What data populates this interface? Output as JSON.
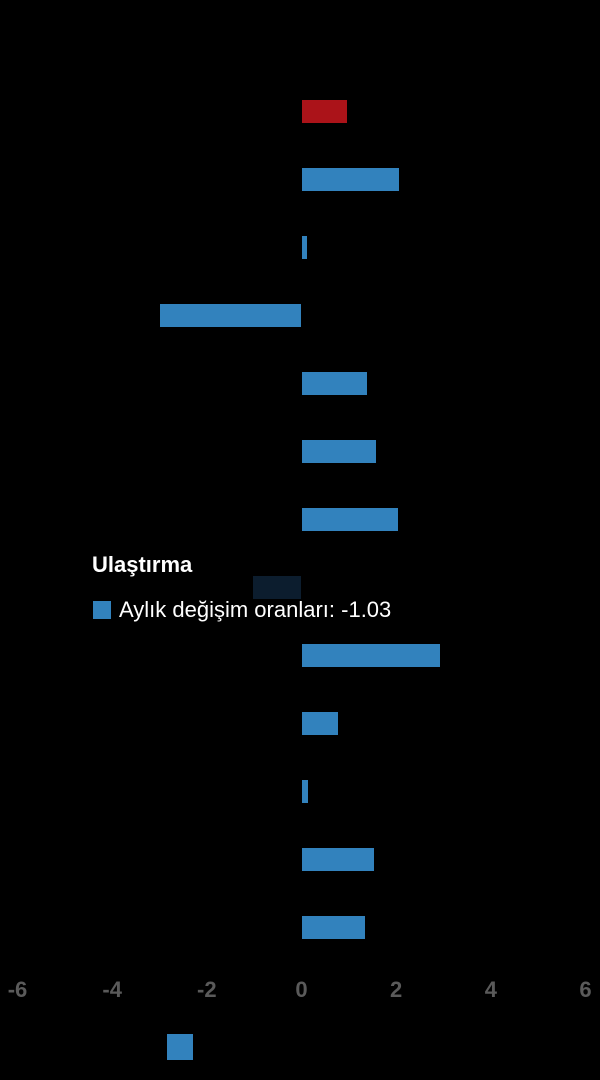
{
  "colors": {
    "background": "#000000",
    "bar_blue": "#3282bd",
    "bar_red": "#ab1319",
    "bar_highlight": "#0c1d2e",
    "axis_label": "#5a5a5a",
    "tooltip_text": "#ffffff"
  },
  "tooltip": {
    "title": "Ulaştırma",
    "series_label": "Aylık değişim oranları",
    "value": "-1.03",
    "text": "Aylık değişim oranları: -1.03"
  },
  "chart_data": {
    "type": "bar",
    "orientation": "horizontal",
    "title": "",
    "xlabel": "",
    "ylabel": "",
    "x_range": [
      -6,
      6
    ],
    "x_ticks": [
      "-6",
      "-4",
      "-2",
      "0",
      "2",
      "4",
      "6"
    ],
    "grid": false,
    "legend_position": "bottom",
    "categories": [
      "",
      "",
      "",
      "",
      "",
      "",
      "",
      "Ulaştırma",
      "",
      "",
      "",
      "",
      ""
    ],
    "series": [
      {
        "name": "Aylık değişim oranları",
        "values": [
          0.97,
          2.06,
          0.12,
          -2.99,
          1.39,
          1.58,
          2.03,
          -1.03,
          2.93,
          0.77,
          0.14,
          1.53,
          1.35
        ]
      }
    ],
    "bar_color_keys": [
      "bar_red",
      "bar_blue",
      "bar_blue",
      "bar_blue",
      "bar_blue",
      "bar_blue",
      "bar_blue",
      "bar_highlight",
      "bar_blue",
      "bar_blue",
      "bar_blue",
      "bar_blue",
      "bar_blue"
    ],
    "highlighted_index": 7,
    "highlighted_category": "Ulaştırma",
    "highlighted_value": -1.03
  }
}
